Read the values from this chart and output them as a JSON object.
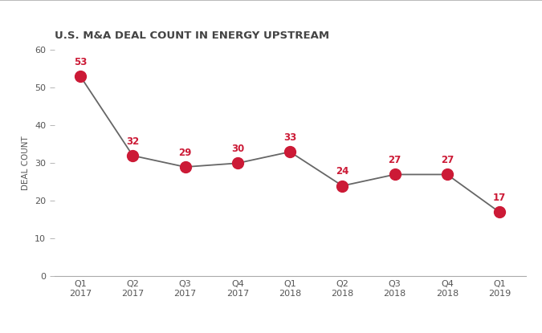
{
  "title": "U.S. M&A DEAL COUNT IN ENERGY UPSTREAM",
  "ylabel": "DEAL COUNT",
  "categories": [
    "Q1\n2017",
    "Q2\n2017",
    "Q3\n2017",
    "Q4\n2017",
    "Q1\n2018",
    "Q2\n2018",
    "Q3\n2018",
    "Q4\n2018",
    "Q1\n2019"
  ],
  "values": [
    53,
    32,
    29,
    30,
    33,
    24,
    27,
    27,
    17
  ],
  "ylim": [
    0,
    60
  ],
  "yticks": [
    0,
    10,
    20,
    30,
    40,
    50,
    60
  ],
  "line_color": "#666666",
  "marker_color": "#cc1a36",
  "label_color": "#cc1a36",
  "background_color": "#ffffff",
  "top_border_color": "#bbbbbb",
  "axis_color": "#aaaaaa",
  "title_fontsize": 9.5,
  "ylabel_fontsize": 7.5,
  "tick_fontsize": 8,
  "annotation_fontsize": 8.5,
  "marker_size": 10,
  "line_width": 1.3
}
